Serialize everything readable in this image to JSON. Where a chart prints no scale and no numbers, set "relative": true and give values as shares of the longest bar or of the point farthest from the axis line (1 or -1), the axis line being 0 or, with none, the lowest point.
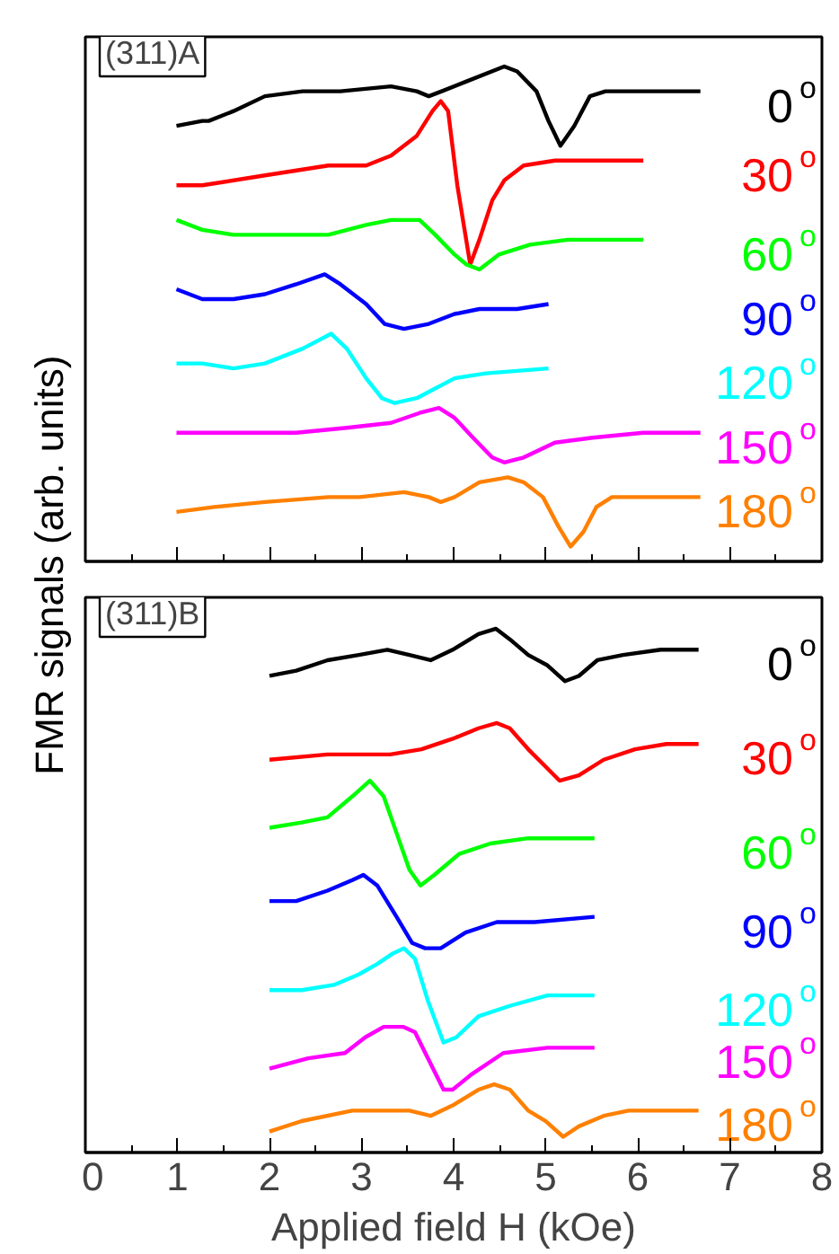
{
  "chart_data": [
    {
      "type": "line",
      "title": "(311)A",
      "ylabel": "FMR signals (arb. units)",
      "relative": true,
      "xlim": [
        0,
        8
      ],
      "xticks": [
        0,
        1,
        2,
        3,
        4,
        5,
        6,
        7,
        8
      ],
      "tick_labels": false,
      "series": [
        {
          "name": "0$^{o}$",
          "color": "#000000",
          "x": [
            0.99,
            1.27,
            1.34,
            1.61,
            1.95,
            2.36,
            2.77,
            3.32,
            3.6,
            3.73,
            3.87,
            4.14,
            4.55,
            4.69,
            4.9,
            5.03,
            5.16,
            5.31,
            5.48,
            5.65,
            6.06,
            6.68
          ],
          "values": [
            0.88,
            0.89,
            0.89,
            0.91,
            0.94,
            0.95,
            0.95,
            0.96,
            0.95,
            0.94,
            0.95,
            0.97,
            1.0,
            0.99,
            0.95,
            0.89,
            0.84,
            0.88,
            0.94,
            0.95,
            0.95,
            0.95
          ]
        },
        {
          "name": "30$^{o}$",
          "color": "#ff0000",
          "x": [
            0.99,
            1.27,
            1.95,
            2.64,
            3.05,
            3.32,
            3.6,
            3.77,
            3.86,
            3.94,
            4.04,
            4.18,
            4.28,
            4.42,
            4.55,
            4.76,
            5.1,
            6.06
          ],
          "values": [
            0.76,
            0.76,
            0.78,
            0.8,
            0.8,
            0.82,
            0.86,
            0.91,
            0.93,
            0.91,
            0.76,
            0.6,
            0.65,
            0.73,
            0.77,
            0.8,
            0.81,
            0.81
          ]
        },
        {
          "name": "60$^{o}$",
          "color": "#00ff00",
          "x": [
            0.99,
            1.27,
            1.61,
            2.29,
            2.64,
            3.05,
            3.32,
            3.63,
            3.8,
            4.01,
            4.14,
            4.28,
            4.49,
            4.83,
            5.24,
            6.06
          ],
          "values": [
            0.69,
            0.67,
            0.66,
            0.66,
            0.66,
            0.68,
            0.69,
            0.69,
            0.66,
            0.62,
            0.6,
            0.59,
            0.62,
            0.64,
            0.65,
            0.65
          ]
        },
        {
          "name": "90$^{o}$",
          "color": "#0000ff",
          "x": [
            0.99,
            1.27,
            1.61,
            1.95,
            2.29,
            2.6,
            2.77,
            3.05,
            3.25,
            3.46,
            3.73,
            4.01,
            4.28,
            4.69,
            5.03
          ],
          "values": [
            0.55,
            0.53,
            0.53,
            0.54,
            0.56,
            0.58,
            0.56,
            0.52,
            0.48,
            0.47,
            0.48,
            0.5,
            0.51,
            0.51,
            0.52
          ]
        },
        {
          "name": "120$^{o}$",
          "color": "#00ffff",
          "x": [
            0.99,
            1.27,
            1.61,
            1.95,
            2.36,
            2.67,
            2.84,
            3.05,
            3.22,
            3.36,
            3.6,
            4.01,
            4.35,
            5.03
          ],
          "values": [
            0.4,
            0.4,
            0.39,
            0.4,
            0.43,
            0.46,
            0.43,
            0.37,
            0.33,
            0.32,
            0.33,
            0.37,
            0.38,
            0.39
          ]
        },
        {
          "name": "150$^{o}$",
          "color": "#ff00ff",
          "x": [
            0.99,
            1.61,
            2.29,
            2.84,
            3.32,
            3.63,
            3.84,
            4.01,
            4.21,
            4.42,
            4.55,
            4.76,
            5.1,
            5.51,
            6.06,
            6.68
          ],
          "values": [
            0.26,
            0.26,
            0.26,
            0.27,
            0.28,
            0.3,
            0.31,
            0.29,
            0.25,
            0.21,
            0.2,
            0.21,
            0.24,
            0.25,
            0.26,
            0.26
          ]
        },
        {
          "name": "180$^{o}$",
          "color": "#ff8000",
          "x": [
            0.99,
            1.4,
            1.95,
            2.64,
            2.98,
            3.46,
            3.73,
            3.86,
            4.01,
            4.28,
            4.59,
            4.76,
            4.97,
            5.14,
            5.27,
            5.41,
            5.55,
            5.72,
            6.06,
            6.68
          ],
          "values": [
            0.1,
            0.11,
            0.12,
            0.13,
            0.13,
            0.14,
            0.13,
            0.12,
            0.13,
            0.16,
            0.17,
            0.16,
            0.13,
            0.07,
            0.03,
            0.06,
            0.11,
            0.13,
            0.13,
            0.13
          ]
        }
      ]
    },
    {
      "type": "line",
      "title": "(311)B",
      "xlabel": "Applied field H (kOe)",
      "relative": true,
      "xlim": [
        0,
        8
      ],
      "xticks": [
        0,
        1,
        2,
        3,
        4,
        5,
        6,
        7,
        8
      ],
      "tick_labels": "x",
      "series": [
        {
          "name": "0$^{o}$",
          "color": "#000000",
          "x": [
            2.0,
            2.29,
            2.63,
            2.97,
            3.28,
            3.52,
            3.75,
            3.99,
            4.27,
            4.46,
            4.61,
            4.81,
            5.02,
            5.21,
            5.36,
            5.56,
            5.84,
            6.25,
            6.66
          ],
          "values": [
            0.91,
            0.92,
            0.94,
            0.95,
            0.96,
            0.95,
            0.94,
            0.96,
            0.99,
            1.0,
            0.98,
            0.95,
            0.93,
            0.9,
            0.91,
            0.94,
            0.95,
            0.96,
            0.96
          ]
        },
        {
          "name": "30$^{o}$",
          "color": "#ff0000",
          "x": [
            2.0,
            2.63,
            3.31,
            3.65,
            3.99,
            4.27,
            4.47,
            4.61,
            4.81,
            4.98,
            5.15,
            5.36,
            5.63,
            5.97,
            6.31,
            6.66
          ],
          "values": [
            0.75,
            0.76,
            0.76,
            0.77,
            0.79,
            0.81,
            0.82,
            0.81,
            0.77,
            0.74,
            0.71,
            0.72,
            0.75,
            0.77,
            0.78,
            0.78
          ]
        },
        {
          "name": "60$^{o}$",
          "color": "#00ff00",
          "x": [
            2.0,
            2.35,
            2.63,
            2.9,
            3.09,
            3.24,
            3.38,
            3.52,
            3.64,
            3.79,
            4.06,
            4.4,
            4.81,
            5.53
          ],
          "values": [
            0.62,
            0.63,
            0.64,
            0.68,
            0.71,
            0.68,
            0.61,
            0.54,
            0.51,
            0.53,
            0.57,
            0.59,
            0.6,
            0.6
          ]
        },
        {
          "name": "90$^{o}$",
          "color": "#0000ff",
          "x": [
            2.0,
            2.29,
            2.63,
            2.9,
            3.02,
            3.17,
            3.38,
            3.55,
            3.69,
            3.86,
            4.13,
            4.47,
            4.88,
            5.53
          ],
          "values": [
            0.48,
            0.48,
            0.5,
            0.52,
            0.53,
            0.51,
            0.45,
            0.4,
            0.39,
            0.39,
            0.42,
            0.44,
            0.44,
            0.45
          ]
        },
        {
          "name": "120$^{o}$",
          "color": "#00ffff",
          "x": [
            2.0,
            2.35,
            2.7,
            2.97,
            3.17,
            3.34,
            3.46,
            3.58,
            3.72,
            3.89,
            4.03,
            4.27,
            4.61,
            5.02,
            5.53
          ],
          "values": [
            0.31,
            0.31,
            0.32,
            0.34,
            0.36,
            0.38,
            0.39,
            0.37,
            0.29,
            0.21,
            0.22,
            0.26,
            0.28,
            0.3,
            0.3
          ]
        },
        {
          "name": "150$^{o}$",
          "color": "#ff00ff",
          "x": [
            2.0,
            2.42,
            2.82,
            3.04,
            3.24,
            3.45,
            3.58,
            3.72,
            3.89,
            3.99,
            4.2,
            4.54,
            5.02,
            5.53
          ],
          "values": [
            0.16,
            0.18,
            0.19,
            0.22,
            0.24,
            0.24,
            0.23,
            0.18,
            0.12,
            0.12,
            0.15,
            0.19,
            0.2,
            0.2
          ]
        },
        {
          "name": "180$^{o}$",
          "color": "#ff8000",
          "x": [
            2.0,
            2.35,
            2.9,
            3.28,
            3.52,
            3.75,
            3.99,
            4.27,
            4.44,
            4.61,
            4.81,
            5.0,
            5.19,
            5.36,
            5.63,
            5.9,
            6.66
          ],
          "values": [
            0.04,
            0.06,
            0.08,
            0.08,
            0.08,
            0.07,
            0.09,
            0.12,
            0.13,
            0.12,
            0.08,
            0.06,
            0.03,
            0.05,
            0.07,
            0.08,
            0.08
          ]
        }
      ]
    }
  ]
}
